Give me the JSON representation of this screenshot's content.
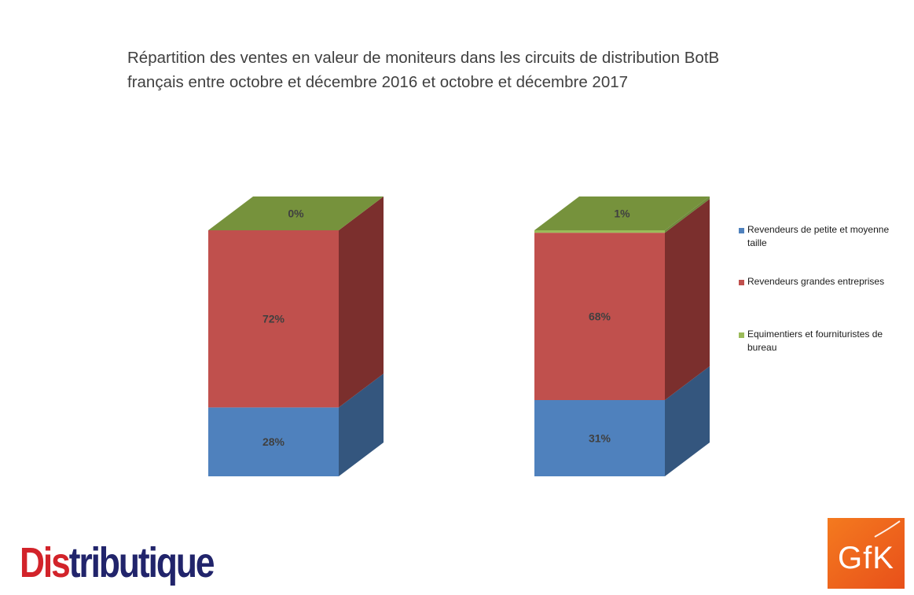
{
  "chart_data": {
    "type": "bar",
    "stacked": true,
    "style": "3d",
    "title": "Répartition des ventes en valeur de moniteurs dans les circuits de distribution BotB français entre octobre et décembre  2016 et octobre et décembre  2017",
    "title_lines": [
      "Répartition des ventes en valeur de moniteurs dans les circuits de distribution BotB",
      "français entre octobre et décembre  2016 et octobre et décembre  2017"
    ],
    "categories": [
      "",
      ""
    ],
    "ylim": [
      0,
      100
    ],
    "legend_position": "right",
    "grid": false,
    "series": [
      {
        "name": "Revendeurs de petite et moyenne taille",
        "values": [
          28,
          31
        ],
        "labels": [
          "28%",
          "31%"
        ],
        "color": "#4f81bd",
        "side_color": "#34567e",
        "top_color": "#5f8fc8"
      },
      {
        "name": "Revendeurs grandes entreprises",
        "values": [
          72,
          68
        ],
        "labels": [
          "72%",
          "68%"
        ],
        "color": "#c0504d",
        "side_color": "#7b2f2d",
        "top_color": "#c7605d"
      },
      {
        "name": "Equimentiers et fournituristes de bureau",
        "values": [
          0,
          1
        ],
        "labels": [
          "0%",
          "1%"
        ],
        "color": "#9bbb59",
        "side_color": "#6f8a3c",
        "top_color": "#76923c"
      }
    ]
  },
  "logos": {
    "distributique_prefix": "Dis",
    "distributique_rest": "tributique",
    "gfk": "GfK"
  },
  "colors": {
    "title": "#404040",
    "gfk_orange": "#f06a1a",
    "distributique_red": "#d2232a",
    "distributique_blue": "#21246b"
  }
}
